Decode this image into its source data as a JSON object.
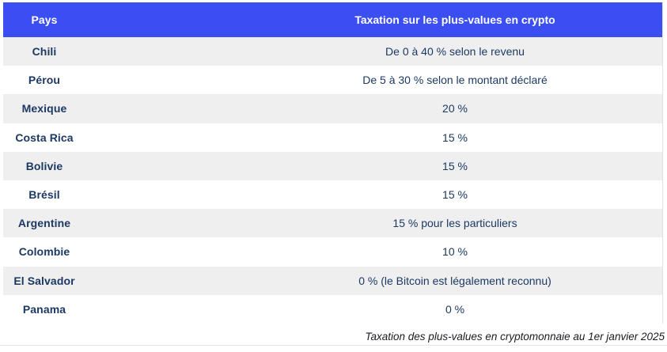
{
  "chart_data": {
    "type": "table",
    "title": "",
    "caption": "Taxation des plus-values en cryptomonnaie au 1er janvier 2025",
    "columns": [
      "Pays",
      "Taxation sur les plus-values en crypto"
    ],
    "rows": [
      [
        "Chili",
        "De 0 à 40 % selon le revenu"
      ],
      [
        "Pérou",
        "De 5 à 30 % selon le montant déclaré"
      ],
      [
        "Mexique",
        "20 %"
      ],
      [
        "Costa Rica",
        "15 %"
      ],
      [
        "Bolivie",
        "15 %"
      ],
      [
        "Brésil",
        "15 %"
      ],
      [
        "Argentine",
        "15 % pour les particuliers"
      ],
      [
        "Colombie",
        "10 %"
      ],
      [
        "El Salvador",
        "0 % (le Bitcoin est légalement reconnu)"
      ],
      [
        "Panama",
        "0 %"
      ]
    ],
    "layout_hints": {
      "striped": true,
      "stripe_pattern": "odd-rows-gray",
      "header_style": "solid-blue-white-text"
    }
  },
  "table": {
    "header": {
      "country_label": "Pays",
      "tax_label": "Taxation sur les plus-values en crypto"
    },
    "rows": [
      {
        "country": "Chili",
        "tax": "De 0 à 40 % selon le revenu"
      },
      {
        "country": "Pérou",
        "tax": "De 5 à 30 % selon le montant déclaré"
      },
      {
        "country": "Mexique",
        "tax": "20 %"
      },
      {
        "country": "Costa Rica",
        "tax": "15 %"
      },
      {
        "country": "Bolivie",
        "tax": "15 %"
      },
      {
        "country": "Brésil",
        "tax": "15 %"
      },
      {
        "country": "Argentine",
        "tax": "15 % pour les particuliers"
      },
      {
        "country": "Colombie",
        "tax": "10 %"
      },
      {
        "country": "El Salvador",
        "tax": "0 % (le Bitcoin est légalement reconnu)"
      },
      {
        "country": "Panama",
        "tax": "0 %"
      }
    ]
  },
  "caption": "Taxation des plus-values en cryptomonnaie au 1er janvier 2025",
  "colors": {
    "header_bg": "#3b4ef1",
    "row_alt_bg": "#efeff0",
    "text": "#1c3962",
    "caption_text": "#1b1b24",
    "rule": "#e3e3e8",
    "table_border": "#e0e0ee"
  }
}
